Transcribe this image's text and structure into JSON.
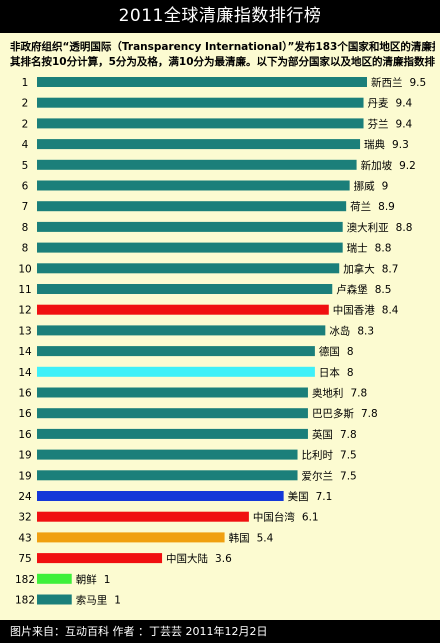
{
  "title": "2011全球清廉指数排行榜",
  "intro_line1": "非政府组织“透明国际（Transparency International）”发布183个国家和地区的清廉指数，",
  "intro_line2": "其排名按10分计算，5分为及格，满10分为最清廉。以下为部分国家以及地区的清廉指数排行。",
  "footer": "图片来自：互动百科  作者 ：丁芸芸  2011年12月2日",
  "chart_data": {
    "type": "bar",
    "orientation": "horizontal",
    "title": "2011全球清廉指数排行榜",
    "xlim": [
      0,
      10
    ],
    "grid": false,
    "legend": "none",
    "rows": [
      {
        "rank": "1",
        "name": "新西兰",
        "value": 9.5,
        "color": "#1b7f7a"
      },
      {
        "rank": "2",
        "name": "丹麦",
        "value": 9.4,
        "color": "#1b7f7a"
      },
      {
        "rank": "2",
        "name": "芬兰",
        "value": 9.4,
        "color": "#1b7f7a"
      },
      {
        "rank": "4",
        "name": "瑞典",
        "value": 9.3,
        "color": "#1b7f7a"
      },
      {
        "rank": "5",
        "name": "新加坡",
        "value": 9.2,
        "color": "#1b7f7a"
      },
      {
        "rank": "6",
        "name": "挪威",
        "value": 9,
        "color": "#1b7f7a"
      },
      {
        "rank": "7",
        "name": "荷兰",
        "value": 8.9,
        "color": "#1b7f7a"
      },
      {
        "rank": "8",
        "name": "澳大利亚",
        "value": 8.8,
        "color": "#1b7f7a"
      },
      {
        "rank": "8",
        "name": "瑞士",
        "value": 8.8,
        "color": "#1b7f7a"
      },
      {
        "rank": "10",
        "name": "加拿大",
        "value": 8.7,
        "color": "#1b7f7a"
      },
      {
        "rank": "11",
        "name": "卢森堡",
        "value": 8.5,
        "color": "#1b7f7a"
      },
      {
        "rank": "12",
        "name": "中国香港",
        "value": 8.4,
        "color": "#f01010"
      },
      {
        "rank": "13",
        "name": "冰岛",
        "value": 8.3,
        "color": "#1b7f7a"
      },
      {
        "rank": "14",
        "name": "德国",
        "value": 8,
        "color": "#1b7f7a"
      },
      {
        "rank": "14",
        "name": "日本",
        "value": 8,
        "color": "#3ff0f8"
      },
      {
        "rank": "16",
        "name": "奥地利",
        "value": 7.8,
        "color": "#1b7f7a"
      },
      {
        "rank": "16",
        "name": "巴巴多斯",
        "value": 7.8,
        "color": "#1b7f7a"
      },
      {
        "rank": "16",
        "name": "英国",
        "value": 7.8,
        "color": "#1b7f7a"
      },
      {
        "rank": "19",
        "name": "比利时",
        "value": 7.5,
        "color": "#1b7f7a"
      },
      {
        "rank": "19",
        "name": "爱尔兰",
        "value": 7.5,
        "color": "#1b7f7a"
      },
      {
        "rank": "24",
        "name": "美国",
        "value": 7.1,
        "color": "#1438d8"
      },
      {
        "rank": "32",
        "name": "中国台湾",
        "value": 6.1,
        "color": "#f01010"
      },
      {
        "rank": "43",
        "name": "韩国",
        "value": 5.4,
        "color": "#f0a010"
      },
      {
        "rank": "75",
        "name": "中国大陆",
        "value": 3.6,
        "color": "#f01010"
      },
      {
        "rank": "182",
        "name": "朝鲜",
        "value": 1,
        "color": "#3ef03a"
      },
      {
        "rank": "182",
        "name": "索马里",
        "value": 1,
        "color": "#1b7f7a"
      }
    ]
  }
}
